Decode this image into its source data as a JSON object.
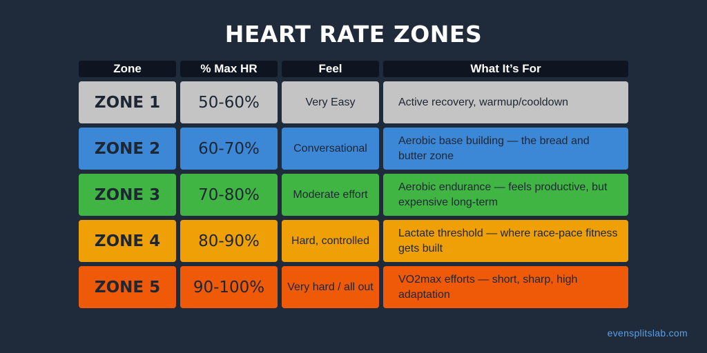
{
  "title": "HEART RATE ZONES",
  "headers": {
    "zone": "Zone",
    "max_hr": "% Max HR",
    "feel": "Feel",
    "purpose": "What It’s For"
  },
  "zones": [
    {
      "zone": "ZONE 1",
      "max_hr": "50-60%",
      "feel": "Very Easy",
      "purpose": "Active recovery, warmup/cooldown",
      "color": "#c4c4c4"
    },
    {
      "zone": "ZONE 2",
      "max_hr": "60-70%",
      "feel": "Conversational",
      "purpose": "Aerobic base building — the bread and butter zone",
      "color": "#3d88d6"
    },
    {
      "zone": "ZONE 3",
      "max_hr": "70-80%",
      "feel": "Moderate effort",
      "purpose": "Aerobic endurance — feels productive, but expensive long-term",
      "color": "#41b544"
    },
    {
      "zone": "ZONE 4",
      "max_hr": "80-90%",
      "feel": "Hard, controlled",
      "purpose": "Lactate threshold — where race-pace fitness gets built",
      "color": "#f0a007"
    },
    {
      "zone": "ZONE 5",
      "max_hr": "90-100%",
      "feel": "Very hard / all out",
      "purpose": "VO2max efforts — short, sharp, high adaptation",
      "color": "#ef5a09"
    }
  ],
  "footer": "evensplitslab.com"
}
